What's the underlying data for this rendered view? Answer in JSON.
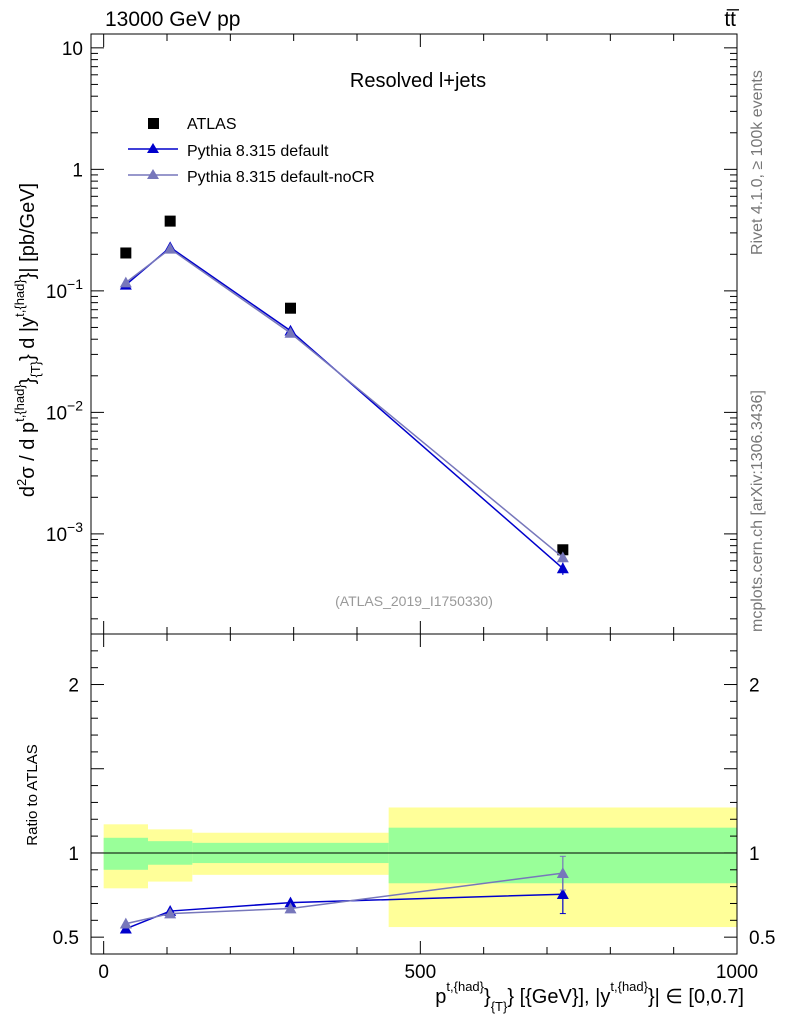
{
  "header": {
    "left": "13000 GeV pp",
    "right": "tt̅"
  },
  "side_labels": {
    "rivet": "Rivet 4.1.0, ≥ 100k events",
    "mcplots": "mcplots.cern.ch [arXiv:1306.3436]"
  },
  "chart_data": [
    {
      "type": "scatter",
      "title": "Resolved l+jets",
      "watermark": "(ATLAS_2019_I1750330)",
      "ylabel": "d²σ / d p^{t,{had}}_{T} d |y^{t,{had}}| [pb/GeV]",
      "yscale": "log",
      "ylim": [
        0.00015,
        13
      ],
      "xlim": [
        -20,
        1000
      ],
      "y_ticks": [
        {
          "value": 10,
          "label": "10"
        },
        {
          "value": 1,
          "label": "1"
        },
        {
          "value": 0.1,
          "base": "10",
          "exp": "−1"
        },
        {
          "value": 0.01,
          "base": "10",
          "exp": "−2"
        },
        {
          "value": 0.001,
          "base": "10",
          "exp": "−3"
        }
      ],
      "legend": [
        {
          "name": "ATLAS",
          "color": "#000000",
          "marker": "square"
        },
        {
          "name": "Pythia 8.315 default",
          "color": "#0000cc",
          "marker": "triangle"
        },
        {
          "name": "Pythia 8.315 default-noCR",
          "color": "#7777bb",
          "marker": "triangle"
        }
      ],
      "series": [
        {
          "name": "ATLAS",
          "color": "#000000",
          "marker": "square",
          "line": false,
          "x": [
            35,
            105,
            295,
            725
          ],
          "y": [
            0.205,
            0.375,
            0.072,
            0.00074
          ]
        },
        {
          "name": "Pythia 8.315 default",
          "color": "#0000cc",
          "marker": "triangle",
          "line": true,
          "x": [
            35,
            105,
            295,
            725
          ],
          "y": [
            0.112,
            0.228,
            0.047,
            0.00052
          ],
          "err_low": [
            0,
            0,
            0,
            6e-05
          ],
          "err_high": [
            0,
            0,
            0,
            6e-05
          ]
        },
        {
          "name": "Pythia 8.315 default-noCR",
          "color": "#7777bb",
          "marker": "triangle",
          "line": true,
          "x": [
            35,
            105,
            295,
            725
          ],
          "y": [
            0.117,
            0.222,
            0.045,
            0.00064
          ],
          "err_low": [
            0,
            0,
            0,
            5e-05
          ],
          "err_high": [
            0,
            0,
            0,
            5e-05
          ]
        }
      ]
    },
    {
      "type": "line",
      "ylabel": "Ratio to ATLAS",
      "xlabel": "p^{t,{had}}_{T} [{GeV}], |y^{t,{had}}| ∈ [0,0.7]",
      "xlim": [
        -20,
        1000
      ],
      "ylim": [
        0.4,
        2.3
      ],
      "x_ticks": [
        {
          "value": 0,
          "label": "0"
        },
        {
          "value": 500,
          "label": "500"
        },
        {
          "value": 1000,
          "label": "1000"
        }
      ],
      "y_ticks": [
        {
          "value": 0.5,
          "label": "0.5"
        },
        {
          "value": 1,
          "label": "1"
        },
        {
          "value": 2,
          "label": "2"
        }
      ],
      "bands": [
        {
          "xlow": 0,
          "xhigh": 70,
          "yellow": [
            0.79,
            1.17
          ],
          "green": [
            0.9,
            1.09
          ]
        },
        {
          "xlow": 70,
          "xhigh": 140,
          "yellow": [
            0.83,
            1.14
          ],
          "green": [
            0.93,
            1.07
          ]
        },
        {
          "xlow": 140,
          "xhigh": 450,
          "yellow": [
            0.87,
            1.12
          ],
          "green": [
            0.94,
            1.06
          ]
        },
        {
          "xlow": 450,
          "xhigh": 1000,
          "yellow": [
            0.56,
            1.27
          ],
          "green": [
            0.82,
            1.15
          ]
        }
      ],
      "series": [
        {
          "name": "Pythia 8.315 default",
          "color": "#0000cc",
          "marker": "triangle",
          "x": [
            35,
            105,
            295,
            725
          ],
          "y": [
            0.55,
            0.655,
            0.705,
            0.755
          ],
          "err_low": [
            0,
            0,
            0,
            0.115
          ],
          "err_high": [
            0,
            0,
            0,
            0.115
          ]
        },
        {
          "name": "Pythia 8.315 default-noCR",
          "color": "#7777bb",
          "marker": "triangle",
          "x": [
            35,
            105,
            295,
            725
          ],
          "y": [
            0.58,
            0.64,
            0.67,
            0.88
          ],
          "err_low": [
            0,
            0,
            0,
            0.1
          ],
          "err_high": [
            0,
            0,
            0,
            0.1
          ]
        }
      ]
    }
  ]
}
